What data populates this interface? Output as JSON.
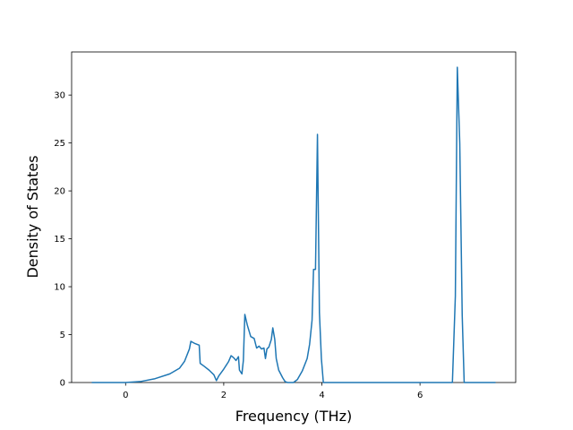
{
  "chart_data": {
    "type": "line",
    "xlabel": "Frequency (THz)",
    "ylabel": "Density of States",
    "x": [
      -0.69,
      0,
      0.3,
      0.6,
      0.9,
      1.1,
      1.2,
      1.3,
      1.33,
      1.4,
      1.5,
      1.52,
      1.6,
      1.7,
      1.8,
      1.85,
      1.9,
      2.0,
      2.1,
      2.15,
      2.2,
      2.25,
      2.3,
      2.32,
      2.37,
      2.4,
      2.43,
      2.48,
      2.55,
      2.62,
      2.67,
      2.72,
      2.77,
      2.82,
      2.85,
      2.88,
      2.92,
      2.97,
      3.0,
      3.04,
      3.07,
      3.12,
      3.2,
      3.25,
      3.3,
      3.42,
      3.5,
      3.6,
      3.7,
      3.75,
      3.8,
      3.83,
      3.87,
      3.91,
      3.95,
      3.99,
      4.03,
      6.6,
      6.66,
      6.72,
      6.76,
      6.81,
      6.86,
      6.9,
      7.54
    ],
    "values": [
      0,
      0,
      0.1,
      0.4,
      0.9,
      1.5,
      2.2,
      3.5,
      4.3,
      4.1,
      3.9,
      2.0,
      1.7,
      1.3,
      0.8,
      0.2,
      0.7,
      1.4,
      2.2,
      2.8,
      2.6,
      2.3,
      2.7,
      1.3,
      0.9,
      2.3,
      7.1,
      6.0,
      4.8,
      4.6,
      3.6,
      3.8,
      3.5,
      3.6,
      2.5,
      3.5,
      3.7,
      4.5,
      5.7,
      4.5,
      2.5,
      1.3,
      0.5,
      0.1,
      0,
      0,
      0.3,
      1.2,
      2.5,
      4.0,
      6.5,
      11.8,
      11.8,
      25.9,
      7.3,
      2.5,
      0,
      0,
      0,
      9,
      32.9,
      25,
      7,
      0,
      0
    ],
    "color": "#1f77b4",
    "xlim": [
      -1.1,
      7.95
    ],
    "ylim": [
      0,
      34.5
    ],
    "xticks": [
      0,
      2,
      4,
      6
    ],
    "yticks": [
      0,
      5,
      10,
      15,
      20,
      25,
      30
    ]
  }
}
